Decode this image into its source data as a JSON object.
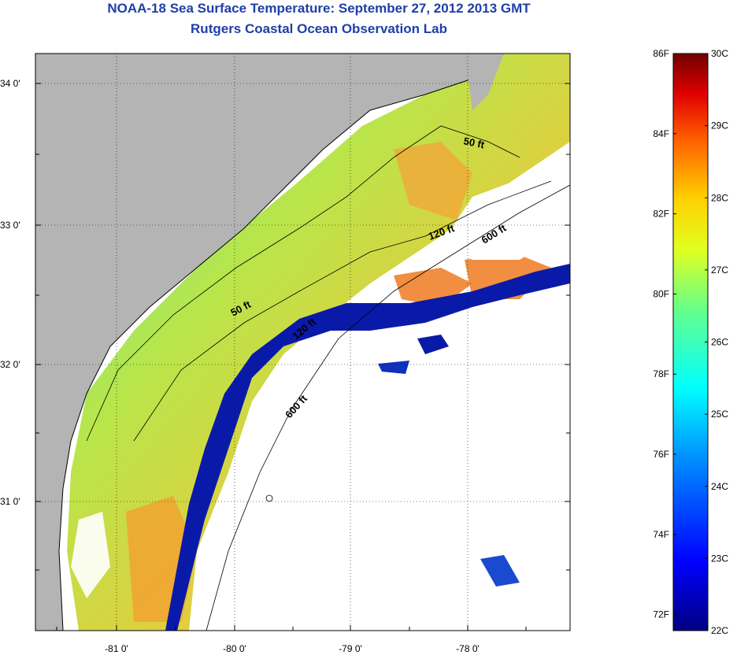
{
  "title": "NOAA-18 Sea Surface Temperature:  September 27, 2012 2013 GMT",
  "subtitle": "Rutgers Coastal Ocean Observation Lab",
  "map": {
    "lat_ticks": [
      "34 0'",
      "33 0'",
      "32 0'",
      "31 0'"
    ],
    "lon_ticks": [
      "-81 0'",
      "-80 0'",
      "-79 0'",
      "-78 0'"
    ],
    "contour_labels": [
      "50 ft",
      "120 ft",
      "600 ft",
      "50 ft",
      "120 ft",
      "600 ft"
    ]
  },
  "colorbar": {
    "fahrenheit_labels": [
      "86F",
      "84F",
      "82F",
      "80F",
      "78F",
      "76F",
      "74F",
      "72F"
    ],
    "celsius_labels": [
      "30C",
      "29C",
      "28C",
      "27C",
      "26C",
      "25C",
      "24C",
      "23C",
      "22C"
    ],
    "min_c": 22,
    "max_c": 30
  },
  "colors": {
    "land": "#b4b4b4",
    "cloud": "#ffffff",
    "title": "#1f3fa8"
  }
}
